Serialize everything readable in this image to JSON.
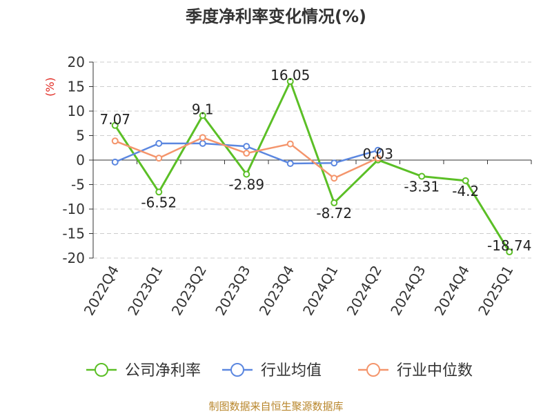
{
  "source_note": "制图数据来自恒生聚源数据库",
  "chart_data": {
    "type": "line",
    "title": "季度净利率变化情况(%)",
    "ylabel": "(%)",
    "xlabel": "",
    "categories": [
      "2022Q4",
      "2023Q1",
      "2023Q2",
      "2023Q3",
      "2023Q4",
      "2024Q1",
      "2024Q2",
      "2024Q3",
      "2024Q4",
      "2025Q1"
    ],
    "ylim": [
      -20,
      20
    ],
    "yticks": [
      20,
      15,
      10,
      5,
      0,
      -5,
      -10,
      -15,
      -20
    ],
    "grid": true,
    "legend_position": "bottom",
    "series": [
      {
        "name": "公司净利率",
        "color": "#5bbf26",
        "values": [
          7.07,
          -6.52,
          9.1,
          -2.89,
          16.05,
          -8.72,
          0.03,
          -3.31,
          -4.2,
          -18.74
        ],
        "labels": [
          "7.07",
          "-6.52",
          "9.1",
          "-2.89",
          "16.05",
          "-8.72",
          "0.03",
          "-3.31",
          "-4.2",
          "-18.74"
        ]
      },
      {
        "name": "行业均值",
        "color": "#5b87e0",
        "values": [
          -0.4,
          3.4,
          3.4,
          2.8,
          -0.7,
          -0.6,
          2.0,
          null,
          null,
          null
        ]
      },
      {
        "name": "行业中位数",
        "color": "#f4956c",
        "values": [
          3.9,
          0.4,
          4.6,
          1.4,
          3.3,
          -3.7,
          0.4,
          null,
          null,
          null
        ]
      }
    ]
  }
}
